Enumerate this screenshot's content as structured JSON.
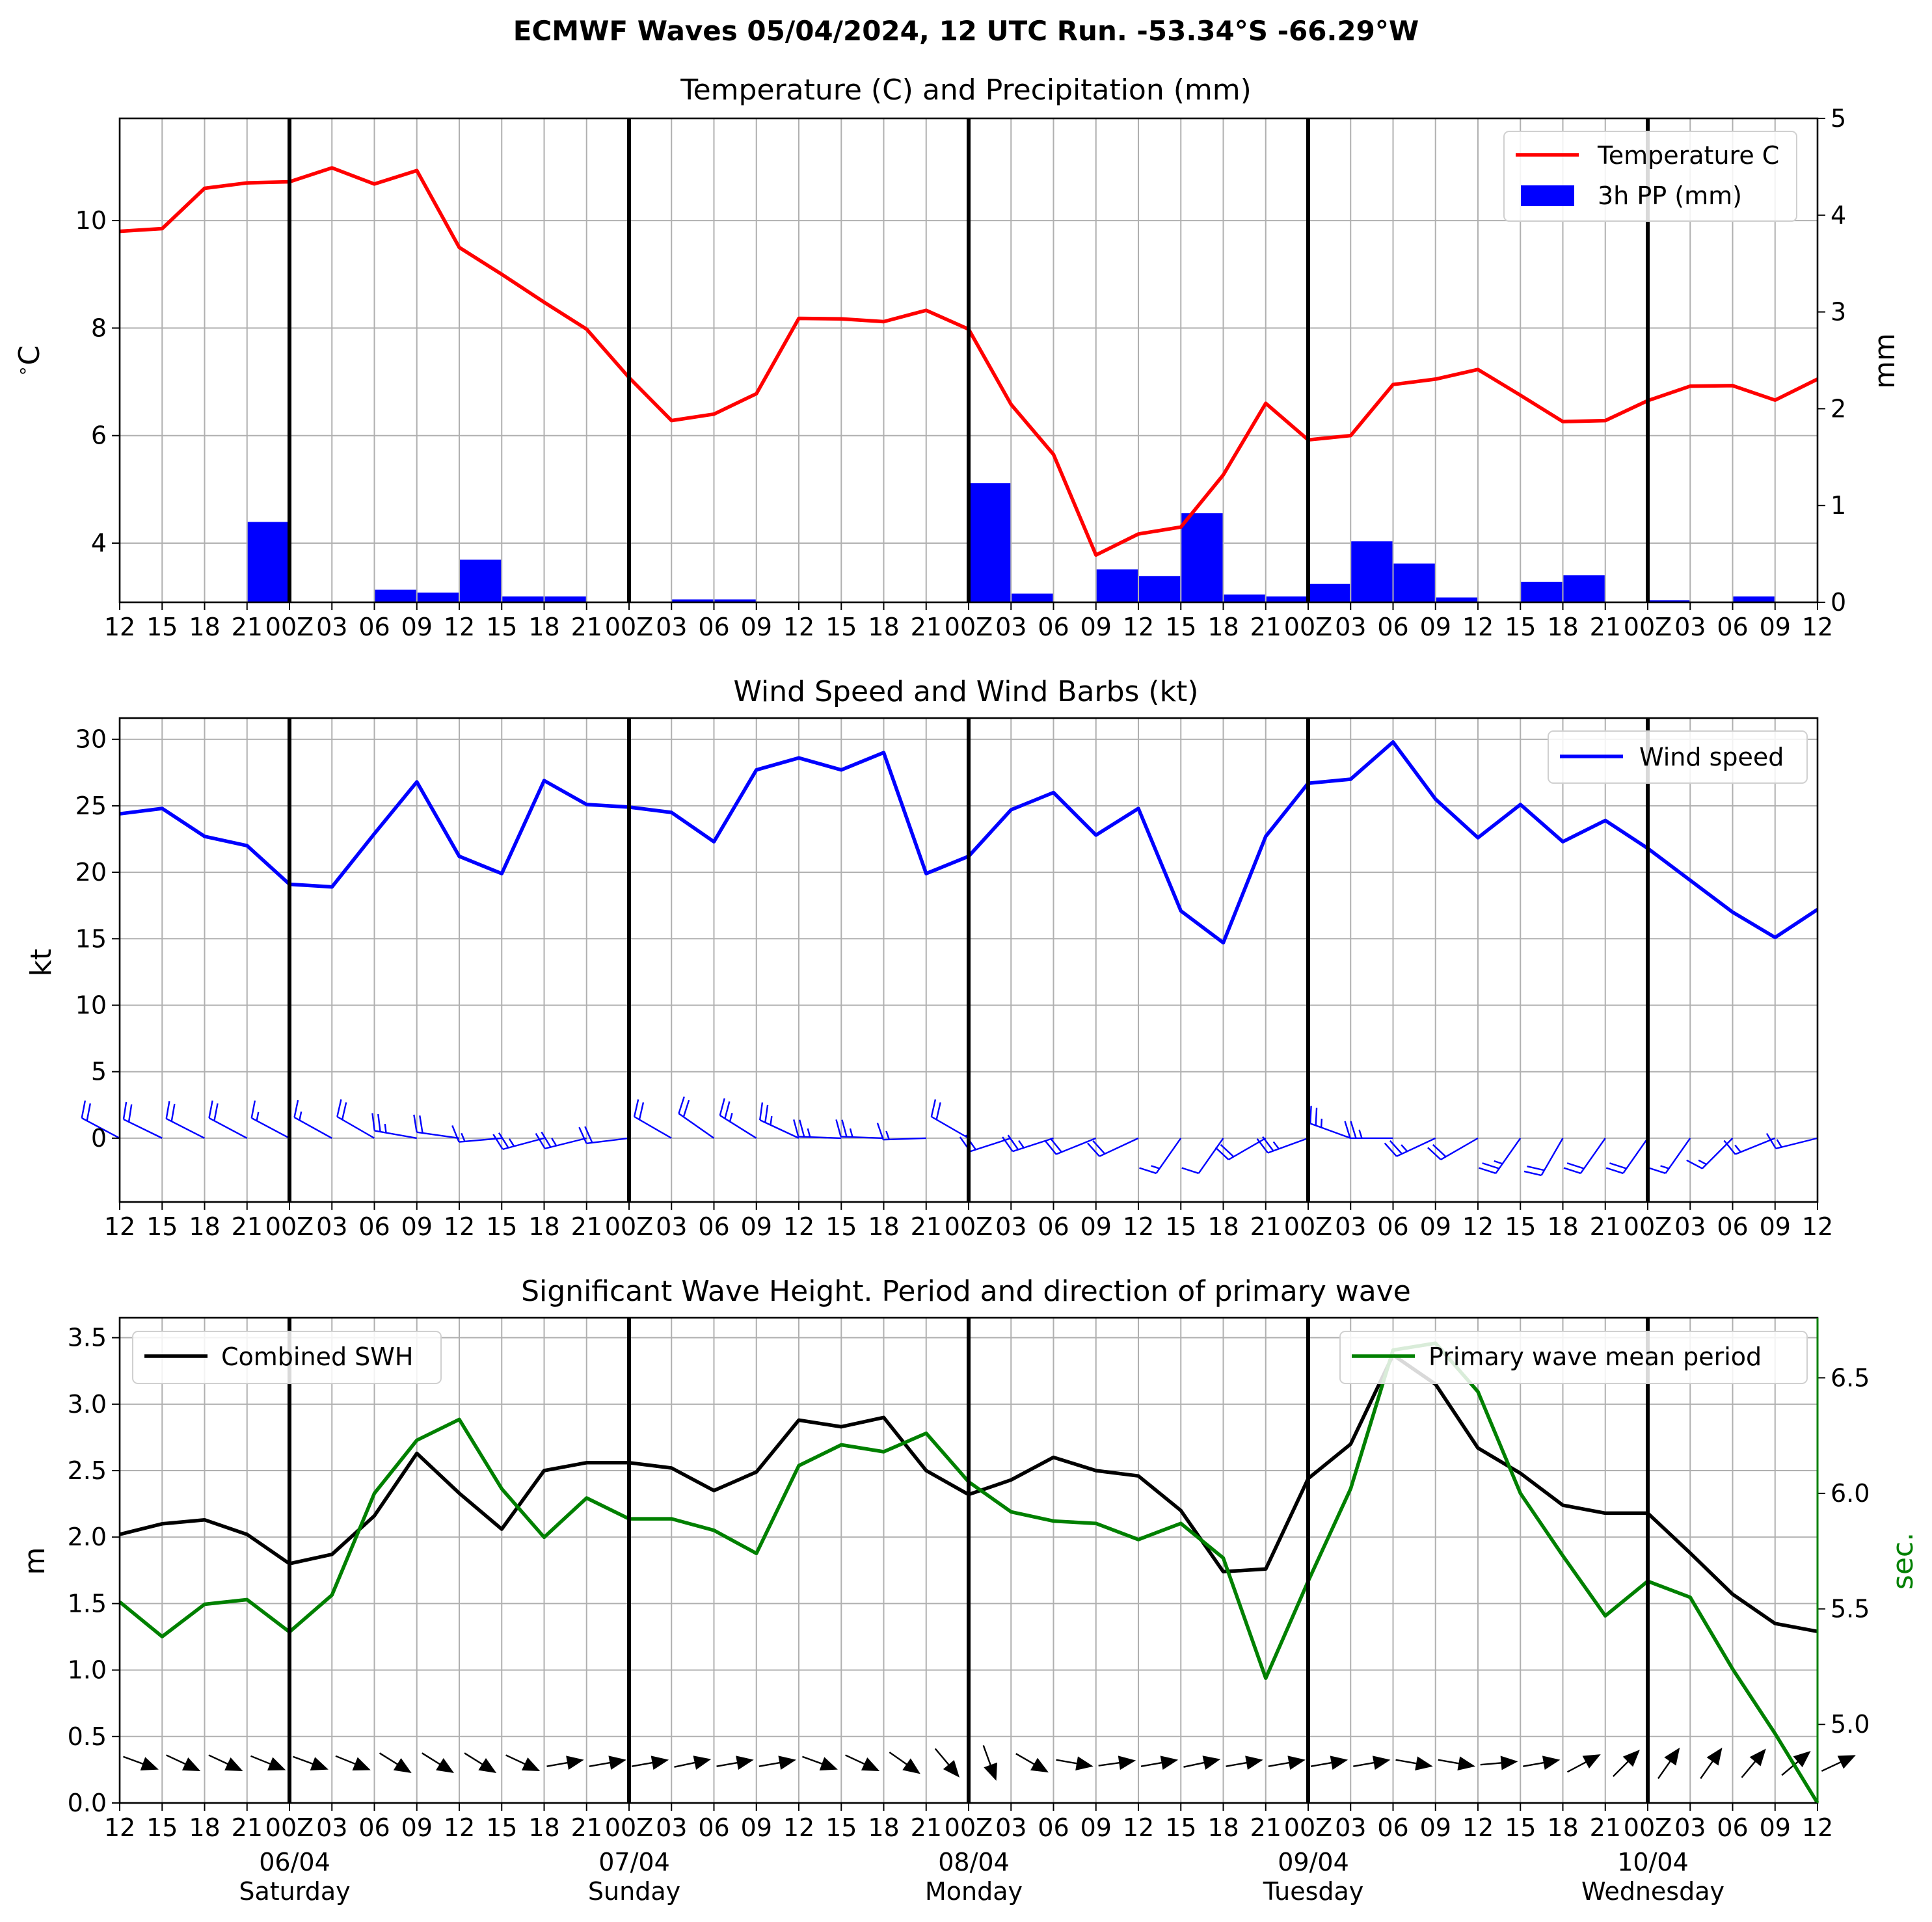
{
  "suptitle": "ECMWF Waves 05/04/2024, 12 UTC Run. -53.34°S -66.29°W",
  "colors": {
    "temperature": "#ff0000",
    "precip": "#0000ff",
    "wind": "#0000ff",
    "swh": "#000000",
    "period": "#008000",
    "grid": "#b0b0b0"
  },
  "x_tick_labels": [
    "12",
    "15",
    "18",
    "21",
    "00Z",
    "03",
    "06",
    "09",
    "12",
    "15",
    "18",
    "21",
    "00Z",
    "03",
    "06",
    "09",
    "12",
    "15",
    "18",
    "21",
    "00Z",
    "03",
    "06",
    "09",
    "12",
    "15",
    "18",
    "21",
    "00Z",
    "03",
    "06",
    "09",
    "12",
    "15",
    "18",
    "21",
    "00Z",
    "03",
    "06",
    "09",
    "12"
  ],
  "day_labels": [
    {
      "date": "06/04",
      "day": "Saturday"
    },
    {
      "date": "07/04",
      "day": "Sunday"
    },
    {
      "date": "08/04",
      "day": "Monday"
    },
    {
      "date": "09/04",
      "day": "Tuesday"
    },
    {
      "date": "10/04",
      "day": "Wednesday"
    }
  ],
  "chart_data": [
    {
      "type": "line",
      "title": "Temperature (C) and Precipitation (mm)",
      "ylabel": "$^\\circ$C",
      "ylabel_right": "mm",
      "ylim": [
        2.9,
        11.9
      ],
      "ylim_right": [
        0,
        5
      ],
      "yticks": [
        4,
        6,
        8,
        10
      ],
      "yticks_right": [
        0,
        1,
        2,
        3,
        4,
        5
      ],
      "legend_position": "upper right",
      "series": [
        {
          "name": "Temperature C",
          "kind": "line",
          "axis": "left",
          "values": [
            9.8,
            9.85,
            10.6,
            10.7,
            10.72,
            10.98,
            10.68,
            10.93,
            9.5,
            9.0,
            8.48,
            7.98,
            7.08,
            6.28,
            6.4,
            6.78,
            8.18,
            8.17,
            8.12,
            8.33,
            7.98,
            6.58,
            5.65,
            3.78,
            4.17,
            4.3,
            5.27,
            6.6,
            5.92,
            6.0,
            6.95,
            7.05,
            7.23,
            6.75,
            6.26,
            6.28,
            6.65,
            6.92,
            6.93,
            6.66,
            7.05
          ]
        },
        {
          "name": "3h PP (mm)",
          "kind": "bar",
          "axis": "right",
          "values": [
            0,
            0,
            0,
            0.83,
            0,
            0,
            0.13,
            0.1,
            0.44,
            0.06,
            0.06,
            0,
            0,
            0.03,
            0.03,
            0,
            0,
            0,
            0,
            0,
            1.23,
            0.09,
            0,
            0.34,
            0.27,
            0.92,
            0.08,
            0.06,
            0.19,
            0.63,
            0.4,
            0.05,
            0,
            0.21,
            0.28,
            0,
            0.02,
            0,
            0.06,
            0,
            0
          ]
        }
      ]
    },
    {
      "type": "line",
      "title": "Wind Speed and Wind Barbs (kt)",
      "ylabel": "kt",
      "ylim": [
        -4.8,
        31.6
      ],
      "yticks": [
        0,
        5,
        10,
        15,
        20,
        25,
        30
      ],
      "legend_position": "upper right",
      "series": [
        {
          "name": "Wind speed",
          "values": [
            24.4,
            24.8,
            22.7,
            22.0,
            19.1,
            18.9,
            22.9,
            26.8,
            21.2,
            19.9,
            26.9,
            25.1,
            24.9,
            24.5,
            22.3,
            27.7,
            28.6,
            27.7,
            29.0,
            19.9,
            21.2,
            24.7,
            26.0,
            22.8,
            24.8,
            17.1,
            14.7,
            22.7,
            26.7,
            27.0,
            29.8,
            25.5,
            22.6,
            25.1,
            22.3,
            23.9,
            21.8,
            19.4,
            17.0,
            15.1,
            17.2
          ]
        },
        {
          "name": "Wind barbs",
          "kind": "barbs",
          "barb_from_deg": [
            298,
            296,
            297,
            298,
            298,
            299,
            300,
            280,
            278,
            265,
            255,
            256,
            263,
            300,
            305,
            302,
            295,
            272,
            272,
            268,
            300,
            252,
            252,
            248,
            245,
            215,
            215,
            240,
            250,
            290,
            270,
            245,
            240,
            215,
            210,
            215,
            215,
            215,
            225,
            248,
            256
          ]
        }
      ]
    },
    {
      "type": "line",
      "title": "Significant Wave Height. Period and direction of primary wave",
      "ylabel": "m",
      "ylabel_right": "sec.",
      "ylim": [
        0.0,
        3.65
      ],
      "ylim_right": [
        4.66,
        6.76
      ],
      "yticks": [
        0.0,
        0.5,
        1.0,
        1.5,
        2.0,
        2.5,
        3.0,
        3.5
      ],
      "yticks_right": [
        5.0,
        5.5,
        6.0,
        6.5
      ],
      "series": [
        {
          "name": "Combined SWH",
          "axis": "left",
          "legend_position": "upper left",
          "values": [
            2.02,
            2.1,
            2.13,
            2.02,
            1.8,
            1.87,
            2.16,
            2.63,
            2.33,
            2.06,
            2.5,
            2.56,
            2.56,
            2.52,
            2.35,
            2.49,
            2.88,
            2.83,
            2.9,
            2.5,
            2.32,
            2.43,
            2.6,
            2.5,
            2.46,
            2.2,
            1.74,
            1.76,
            2.44,
            2.7,
            3.37,
            3.15,
            2.67,
            2.48,
            2.24,
            2.18,
            2.18,
            1.88,
            1.57,
            1.35,
            1.29
          ]
        },
        {
          "name": "Primary wave mean period",
          "axis": "right",
          "legend_position": "upper right",
          "values": [
            5.53,
            5.38,
            5.52,
            5.54,
            5.4,
            5.56,
            6.0,
            6.23,
            6.32,
            6.02,
            5.81,
            5.98,
            5.89,
            5.89,
            5.84,
            5.74,
            6.12,
            6.21,
            6.18,
            6.26,
            6.05,
            5.92,
            5.88,
            5.87,
            5.8,
            5.87,
            5.72,
            5.2,
            5.62,
            6.02,
            6.62,
            6.65,
            6.44,
            6.0,
            5.73,
            5.47,
            5.62,
            5.55,
            5.24,
            4.96,
            4.66
          ]
        },
        {
          "name": "Primary wave direction",
          "kind": "arrows",
          "arrow_to_deg": [
            110,
            115,
            115,
            112,
            110,
            112,
            122,
            122,
            122,
            115,
            80,
            80,
            80,
            78,
            80,
            80,
            110,
            115,
            125,
            140,
            160,
            120,
            100,
            82,
            80,
            78,
            80,
            80,
            80,
            80,
            100,
            100,
            85,
            80,
            62,
            45,
            35,
            35,
            40,
            50,
            65
          ]
        }
      ]
    }
  ]
}
